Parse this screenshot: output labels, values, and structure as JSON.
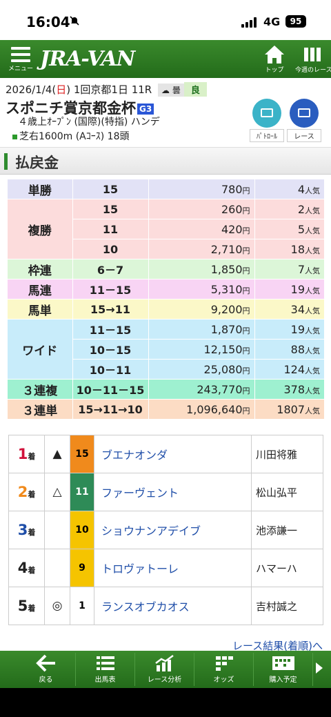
{
  "status": {
    "time": "16:04",
    "network": "4G",
    "battery": "95"
  },
  "header": {
    "menu_label": "メニュー",
    "logo": "JRA-VAN",
    "top_label": "トップ",
    "week_label": "今週のレース"
  },
  "race": {
    "date_prefix": "2026/1/4(",
    "day": "日",
    "date_suffix": ") 1回京都1日 11R",
    "weather": "曇",
    "track": "良",
    "name": "スポニチ賞京都金杯",
    "grade": "G3",
    "conditions": "４歳上ｵｰﾌﾟﾝ (国際)(特指) ハンデ",
    "course": "芝右1600m (Aｺｰｽ) 18頭",
    "patrol_label": "ﾊﾟﾄﾛｰﾙ",
    "replay_label": "レース"
  },
  "section_title": "払戻金",
  "payouts": [
    {
      "type": "単勝",
      "color": "#e2e2f6",
      "rows": [
        {
          "comb": "15",
          "amount": "780",
          "pop": "4"
        }
      ]
    },
    {
      "type": "複勝",
      "color": "#fcdcdc",
      "rows": [
        {
          "comb": "15",
          "amount": "260",
          "pop": "2"
        },
        {
          "comb": "11",
          "amount": "420",
          "pop": "5"
        },
        {
          "comb": "10",
          "amount": "2,710",
          "pop": "18"
        }
      ]
    },
    {
      "type": "枠連",
      "color": "#dcf6d8",
      "rows": [
        {
          "comb": "6－7",
          "amount": "1,850",
          "pop": "7"
        }
      ]
    },
    {
      "type": "馬連",
      "color": "#f8d4f4",
      "rows": [
        {
          "comb": "11－15",
          "amount": "5,310",
          "pop": "19"
        }
      ]
    },
    {
      "type": "馬単",
      "color": "#fbf8c8",
      "rows": [
        {
          "comb": "15→11",
          "amount": "9,200",
          "pop": "34"
        }
      ]
    },
    {
      "type": "ワイド",
      "color": "#c8ecfa",
      "rows": [
        {
          "comb": "11－15",
          "amount": "1,870",
          "pop": "19"
        },
        {
          "comb": "10－15",
          "amount": "12,150",
          "pop": "88"
        },
        {
          "comb": "10－11",
          "amount": "25,080",
          "pop": "124"
        }
      ]
    },
    {
      "type": "３連複",
      "color": "#9ef0d0",
      "rows": [
        {
          "comb": "10－11－15",
          "amount": "243,770",
          "pop": "378"
        }
      ]
    },
    {
      "type": "３連単",
      "color": "#fcdcc4",
      "rows": [
        {
          "comb": "15→11→10",
          "amount": "1,096,640",
          "pop": "1807"
        }
      ]
    }
  ],
  "yen_unit": "円",
  "pop_unit": "人気",
  "results": [
    {
      "rank": "1",
      "rank_color": "#d0103a",
      "mark": "▲",
      "num": "15",
      "num_bg": "#f08a1c",
      "num_fg": "#000000",
      "horse": "ブエナオンダ",
      "jockey": "川田将雅"
    },
    {
      "rank": "2",
      "rank_color": "#f08a1c",
      "mark": "△",
      "num": "11",
      "num_bg": "#2e8b57",
      "num_fg": "#ffffff",
      "horse": "ファーヴェント",
      "jockey": "松山弘平"
    },
    {
      "rank": "3",
      "rank_color": "#1f4ea8",
      "mark": "",
      "num": "10",
      "num_bg": "#f5c400",
      "num_fg": "#000000",
      "horse": "ショウナンアデイブ",
      "jockey": "池添謙一"
    },
    {
      "rank": "4",
      "rank_color": "#222222",
      "mark": "",
      "num": "9",
      "num_bg": "#f5c400",
      "num_fg": "#000000",
      "horse": "トロヴァトーレ",
      "jockey": "ハマーハ"
    },
    {
      "rank": "5",
      "rank_color": "#222222",
      "mark": "◎",
      "num": "1",
      "num_bg": "#ffffff",
      "num_fg": "#000000",
      "horse": "ランスオブカオス",
      "jockey": "吉村誠之"
    }
  ],
  "rank_suffix": "着",
  "more_link": "レース結果(着順)へ",
  "bottom_nav": [
    "戻る",
    "出馬表",
    "レース分析",
    "オッズ",
    "購入予定"
  ],
  "colors": {
    "header_green": "#2e7d22",
    "link_blue": "#1f4ea8",
    "grade_blue": "#2a56d6",
    "video_teal": "#3bb3c8",
    "video_blue": "#2a5dbf"
  }
}
